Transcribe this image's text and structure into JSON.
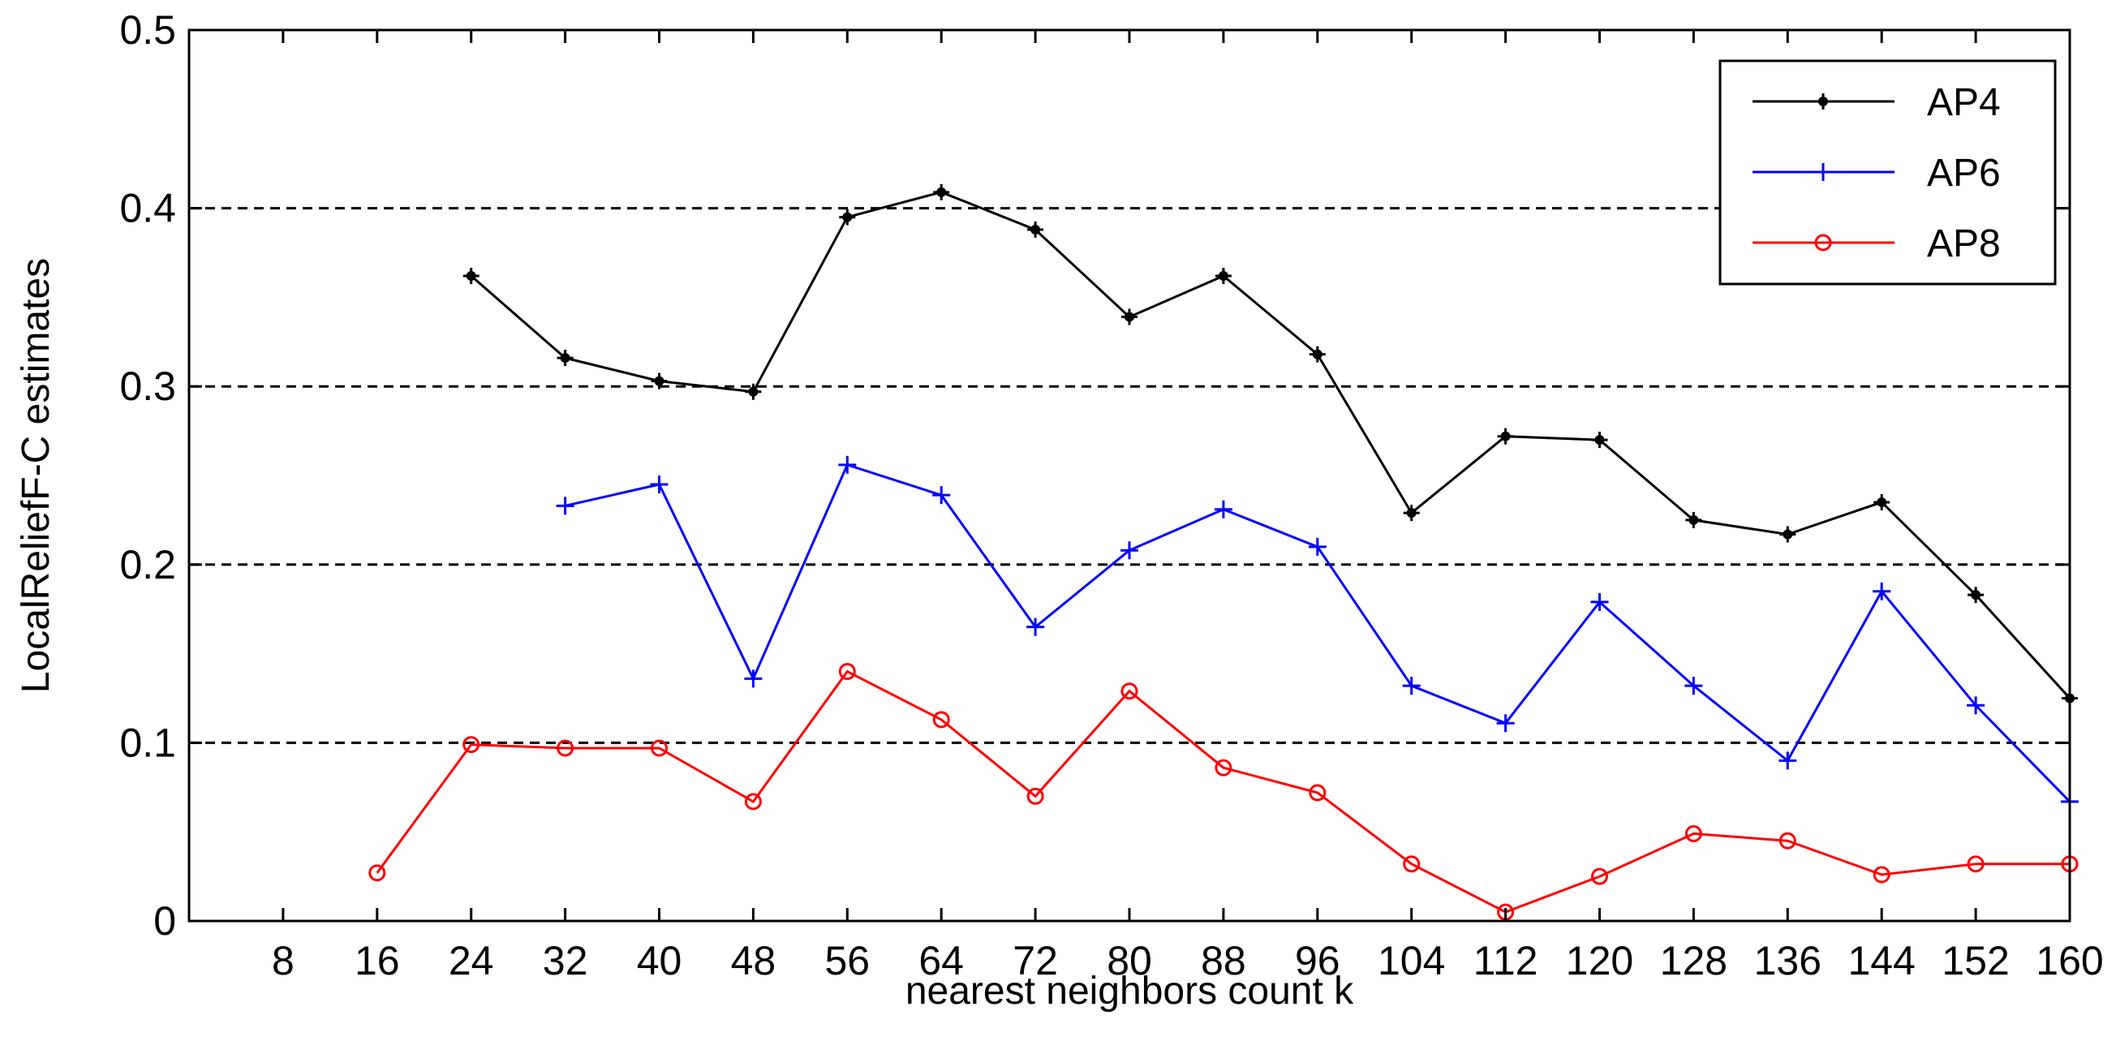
{
  "chart_data": {
    "type": "line",
    "title": "",
    "xlabel": "nearest neighbors count k",
    "ylabel": "LocalReliefF-C estimates",
    "xlim": [
      0,
      160
    ],
    "ylim": [
      0,
      0.5
    ],
    "x_ticks": [
      8,
      16,
      24,
      32,
      40,
      48,
      56,
      64,
      72,
      80,
      88,
      96,
      104,
      112,
      120,
      128,
      136,
      144,
      152,
      160
    ],
    "x_tick_labels": [
      "8",
      "16",
      "24",
      "32",
      "40",
      "48",
      "56",
      "64",
      "72",
      "80",
      "88",
      "96",
      "104",
      "112",
      "120",
      "128",
      "136",
      "144",
      "152",
      "160"
    ],
    "y_ticks": [
      0,
      0.1,
      0.2,
      0.3,
      0.4,
      0.5
    ],
    "y_tick_labels": [
      "0",
      "0.1",
      "0.2",
      "0.3",
      "0.4",
      "0.5"
    ],
    "grid": "horizontal dashed at 0.1, 0.2, 0.3, 0.4",
    "legend_position": "top-right",
    "series": [
      {
        "name": "AP4",
        "color": "#000000",
        "marker": "star",
        "x": [
          24,
          32,
          40,
          48,
          56,
          64,
          72,
          80,
          88,
          96,
          104,
          112,
          120,
          128,
          136,
          144,
          152,
          160
        ],
        "values": [
          0.362,
          0.316,
          0.303,
          0.297,
          0.395,
          0.409,
          0.388,
          0.339,
          0.362,
          0.318,
          0.229,
          0.272,
          0.27,
          0.225,
          0.217,
          0.235,
          0.183,
          0.125
        ]
      },
      {
        "name": "AP6",
        "color": "#0000ff",
        "marker": "plus",
        "x": [
          32,
          40,
          48,
          56,
          64,
          72,
          80,
          88,
          96,
          104,
          112,
          120,
          128,
          136,
          144,
          152,
          160
        ],
        "values": [
          0.233,
          0.245,
          0.136,
          0.256,
          0.239,
          0.165,
          0.208,
          0.231,
          0.21,
          0.132,
          0.111,
          0.179,
          0.132,
          0.09,
          0.185,
          0.121,
          0.067
        ]
      },
      {
        "name": "AP8",
        "color": "#ff0000",
        "marker": "circle",
        "x": [
          16,
          24,
          32,
          40,
          48,
          56,
          64,
          72,
          80,
          88,
          96,
          104,
          112,
          120,
          128,
          136,
          144,
          152,
          160
        ],
        "values": [
          0.027,
          0.099,
          0.097,
          0.097,
          0.067,
          0.14,
          0.113,
          0.07,
          0.129,
          0.086,
          0.072,
          0.032,
          0.005,
          0.025,
          0.049,
          0.045,
          0.026,
          0.032,
          0.032
        ]
      }
    ]
  }
}
